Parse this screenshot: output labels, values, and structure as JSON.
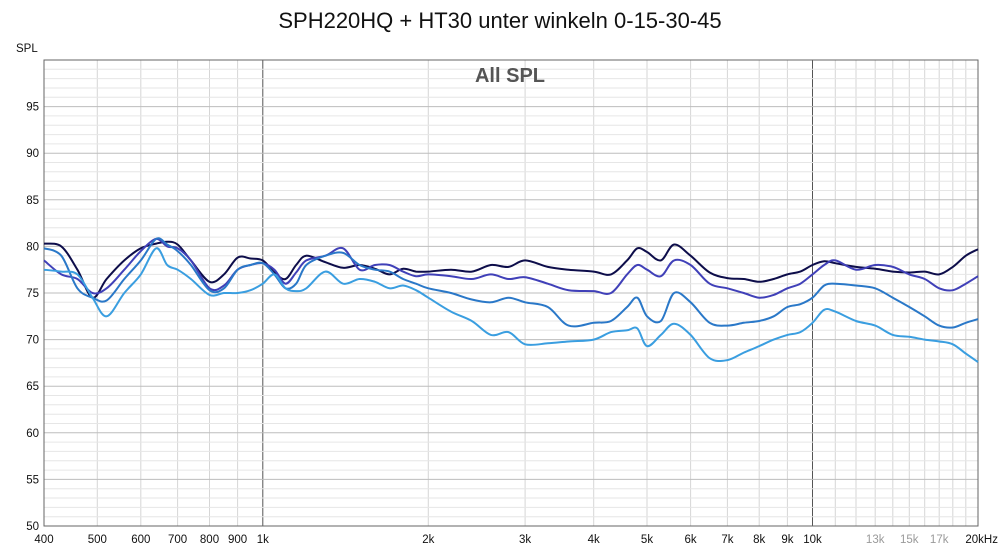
{
  "chart_data": {
    "type": "line",
    "title": "SPH220HQ + HT30 unter winkeln 0-15-30-45",
    "subtitle": "All SPL",
    "ylabel": "SPL",
    "xscale": "log",
    "xlim": [
      400,
      20000
    ],
    "ylim": [
      50,
      100
    ],
    "grid": true,
    "y_ticks": [
      "95",
      "90",
      "85",
      "80",
      "75",
      "70",
      "65",
      "60",
      "55",
      "50"
    ],
    "x_ticks": [
      {
        "label": "400",
        "hz": 400
      },
      {
        "label": "500",
        "hz": 500
      },
      {
        "label": "600",
        "hz": 600
      },
      {
        "label": "700",
        "hz": 700
      },
      {
        "label": "800",
        "hz": 800
      },
      {
        "label": "900",
        "hz": 900
      },
      {
        "label": "1k",
        "hz": 1000
      },
      {
        "label": "2k",
        "hz": 2000
      },
      {
        "label": "3k",
        "hz": 3000
      },
      {
        "label": "4k",
        "hz": 4000
      },
      {
        "label": "5k",
        "hz": 5000
      },
      {
        "label": "6k",
        "hz": 6000
      },
      {
        "label": "7k",
        "hz": 7000
      },
      {
        "label": "8k",
        "hz": 8000
      },
      {
        "label": "9k",
        "hz": 9000
      },
      {
        "label": "10k",
        "hz": 10000
      },
      {
        "label": "13k",
        "hz": 13000,
        "muted": true
      },
      {
        "label": "15k",
        "hz": 15000,
        "muted": true
      },
      {
        "label": "17k",
        "hz": 17000,
        "muted": true
      },
      {
        "label": "20kHz",
        "hz": 20000
      }
    ],
    "series": [
      {
        "color": "#0d0d4a",
        "x": [
          400,
          430,
          460,
          490,
          520,
          560,
          600,
          640,
          670,
          700,
          740,
          800,
          850,
          900,
          950,
          1000,
          1050,
          1100,
          1150,
          1200,
          1300,
          1400,
          1500,
          1600,
          1700,
          1800,
          1900,
          2000,
          2200,
          2400,
          2600,
          2800,
          3000,
          3300,
          3600,
          4000,
          4300,
          4600,
          4800,
          5000,
          5300,
          5600,
          6000,
          6500,
          7000,
          7500,
          8000,
          8500,
          9000,
          9500,
          10000,
          10500,
          11000,
          12000,
          13000,
          14000,
          15000,
          16000,
          17000,
          18000,
          19000,
          20000
        ],
        "y": [
          80.3,
          80.0,
          77.5,
          74.5,
          76.5,
          78.5,
          79.8,
          80.3,
          80.5,
          80.2,
          78.5,
          76.2,
          77.0,
          78.8,
          78.7,
          78.5,
          77.2,
          76.5,
          78.0,
          79.0,
          78.3,
          77.7,
          78.0,
          77.6,
          77.0,
          77.6,
          77.3,
          77.3,
          77.5,
          77.3,
          78.0,
          77.8,
          78.5,
          77.8,
          77.5,
          77.3,
          77.0,
          78.5,
          79.8,
          79.4,
          78.5,
          80.2,
          79.0,
          77.2,
          76.6,
          76.5,
          76.2,
          76.5,
          77.0,
          77.3,
          78.0,
          78.4,
          78.2,
          77.8,
          77.6,
          77.3,
          77.2,
          77.3,
          77.0,
          77.8,
          79.0,
          79.7
        ]
      },
      {
        "color": "#4040b8",
        "x": [
          400,
          430,
          460,
          490,
          520,
          560,
          600,
          640,
          670,
          700,
          740,
          800,
          850,
          900,
          950,
          1000,
          1050,
          1100,
          1150,
          1200,
          1300,
          1400,
          1500,
          1600,
          1700,
          1800,
          1900,
          2000,
          2200,
          2400,
          2600,
          2800,
          3000,
          3300,
          3600,
          4000,
          4300,
          4600,
          4800,
          5000,
          5300,
          5600,
          6000,
          6500,
          7000,
          7500,
          8000,
          8500,
          9000,
          9500,
          10000,
          10500,
          11000,
          12000,
          13000,
          14000,
          15000,
          16000,
          17000,
          18000,
          19000,
          20000
        ],
        "y": [
          78.5,
          77.0,
          76.5,
          75.0,
          75.5,
          77.5,
          79.5,
          80.8,
          80.0,
          79.8,
          78.5,
          75.5,
          75.8,
          77.5,
          78.0,
          78.2,
          77.5,
          76.0,
          77.2,
          78.5,
          79.0,
          79.8,
          77.5,
          78.0,
          78.0,
          77.3,
          76.8,
          77.0,
          76.8,
          76.5,
          77.0,
          76.5,
          76.7,
          76.0,
          75.3,
          75.2,
          75.0,
          77.0,
          78.0,
          77.5,
          76.8,
          78.5,
          78.0,
          76.0,
          75.5,
          75.0,
          74.5,
          74.8,
          75.5,
          76.0,
          77.0,
          78.0,
          78.5,
          77.5,
          78.0,
          77.8,
          77.0,
          76.5,
          75.5,
          75.3,
          76.0,
          76.8
        ]
      },
      {
        "color": "#2a78c8",
        "x": [
          400,
          430,
          460,
          490,
          520,
          560,
          600,
          640,
          670,
          700,
          740,
          800,
          850,
          900,
          950,
          1000,
          1050,
          1100,
          1150,
          1200,
          1300,
          1400,
          1500,
          1600,
          1700,
          1800,
          1900,
          2000,
          2200,
          2400,
          2600,
          2800,
          3000,
          3300,
          3600,
          4000,
          4300,
          4600,
          4800,
          5000,
          5300,
          5600,
          6000,
          6500,
          7000,
          7500,
          8000,
          8500,
          9000,
          9500,
          10000,
          10500,
          11000,
          12000,
          13000,
          14000,
          15000,
          16000,
          17000,
          18000,
          19000,
          20000
        ],
        "y": [
          79.8,
          79.0,
          75.5,
          74.5,
          74.2,
          76.5,
          78.5,
          80.8,
          80.2,
          79.5,
          78.0,
          75.3,
          75.5,
          77.5,
          78.0,
          78.2,
          77.0,
          75.5,
          76.0,
          78.0,
          79.0,
          79.3,
          78.0,
          77.5,
          77.3,
          76.5,
          76.0,
          75.5,
          75.0,
          74.3,
          74.0,
          74.5,
          74.0,
          73.5,
          71.5,
          71.8,
          72.0,
          73.5,
          74.5,
          72.5,
          72.0,
          75.0,
          74.0,
          71.8,
          71.5,
          71.8,
          72.0,
          72.5,
          73.5,
          73.8,
          74.5,
          75.8,
          76.0,
          75.8,
          75.5,
          74.5,
          73.5,
          72.5,
          71.5,
          71.3,
          71.8,
          72.2
        ]
      },
      {
        "color": "#3a9ee0",
        "x": [
          400,
          430,
          460,
          490,
          520,
          560,
          600,
          640,
          670,
          700,
          740,
          800,
          850,
          900,
          950,
          1000,
          1050,
          1100,
          1150,
          1200,
          1300,
          1400,
          1500,
          1600,
          1700,
          1800,
          1900,
          2000,
          2200,
          2400,
          2600,
          2800,
          3000,
          3300,
          3600,
          4000,
          4300,
          4600,
          4800,
          5000,
          5300,
          5600,
          6000,
          6500,
          7000,
          7500,
          8000,
          8500,
          9000,
          9500,
          10000,
          10500,
          11000,
          12000,
          13000,
          14000,
          15000,
          16000,
          17000,
          18000,
          19000,
          20000
        ],
        "y": [
          77.5,
          77.3,
          77.0,
          74.5,
          72.5,
          75.0,
          77.0,
          79.8,
          78.0,
          77.5,
          76.5,
          74.8,
          75.0,
          75.0,
          75.3,
          76.0,
          77.0,
          75.5,
          75.2,
          75.5,
          77.3,
          76.0,
          76.5,
          76.2,
          75.5,
          75.8,
          75.3,
          74.5,
          73.0,
          72.0,
          70.5,
          70.8,
          69.5,
          69.6,
          69.8,
          70.0,
          70.8,
          71.0,
          71.2,
          69.3,
          70.5,
          71.7,
          70.5,
          68.0,
          67.8,
          68.6,
          69.3,
          70.0,
          70.5,
          70.8,
          71.8,
          73.2,
          73.0,
          72.0,
          71.5,
          70.5,
          70.3,
          70.0,
          69.8,
          69.5,
          68.5,
          67.6
        ]
      }
    ]
  }
}
